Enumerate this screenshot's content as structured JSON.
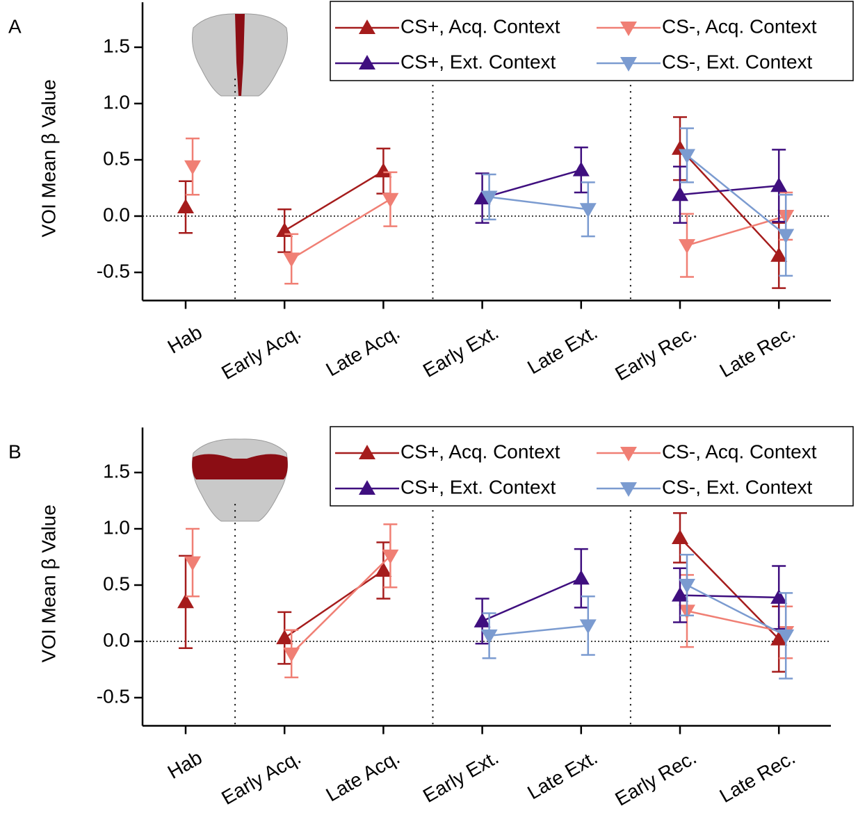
{
  "chart_data": [
    {
      "type": "line",
      "panel": "A",
      "y_label": "VOI Mean β Value",
      "categories": [
        "Hab",
        "Early Acq.",
        "Late Acq.",
        "Early Ext.",
        "Late Ext.",
        "Early Rec.",
        "Late Rec."
      ],
      "ylim": [
        -0.75,
        1.9
      ],
      "yticks": [
        -0.5,
        {
          "value": 0,
          "label": "0.0"
        },
        0.5,
        {
          "value": 1,
          "label": "1.0"
        },
        1.5
      ],
      "series": [
        {
          "name": "CS+, Acq. Context",
          "color": "#a51c1c",
          "marker": "triangle-up",
          "values": [
            0.08,
            -0.13,
            0.4,
            null,
            null,
            0.6,
            -0.35
          ],
          "errors": [
            0.23,
            0.19,
            0.2,
            null,
            null,
            0.28,
            0.29
          ]
        },
        {
          "name": "CS-, Acq. Context",
          "color": "#f07f74",
          "marker": "triangle-down",
          "values": [
            0.44,
            -0.38,
            0.15,
            null,
            null,
            -0.26,
            0.0
          ],
          "errors": [
            0.25,
            0.22,
            0.24,
            null,
            null,
            0.28,
            0.21
          ]
        },
        {
          "name": "CS+, Ext. Context",
          "color": "#3f0f7f",
          "marker": "triangle-up",
          "values": [
            null,
            null,
            null,
            0.16,
            0.41,
            0.19,
            0.27
          ],
          "errors": [
            null,
            null,
            null,
            0.22,
            0.2,
            0.25,
            0.32
          ]
        },
        {
          "name": "CS-, Ext. Context",
          "color": "#7b9bd0",
          "marker": "triangle-down",
          "values": [
            null,
            null,
            null,
            0.17,
            0.06,
            0.54,
            -0.17
          ],
          "errors": [
            null,
            null,
            null,
            0.2,
            0.24,
            0.24,
            0.36
          ]
        }
      ]
    },
    {
      "type": "line",
      "panel": "B",
      "y_label": "VOI Mean β Value",
      "categories": [
        "Hab",
        "Early Acq.",
        "Late Acq.",
        "Early Ext.",
        "Late Ext.",
        "Early Rec.",
        "Late Rec."
      ],
      "ylim": [
        -0.75,
        1.9
      ],
      "yticks": [
        -0.5,
        {
          "value": 0,
          "label": "0.0"
        },
        0.5,
        {
          "value": 1,
          "label": "1.0"
        },
        1.5
      ],
      "series": [
        {
          "name": "CS+, Acq. Context",
          "color": "#a51c1c",
          "marker": "triangle-up",
          "values": [
            0.35,
            0.03,
            0.63,
            null,
            null,
            0.92,
            0.02
          ],
          "errors": [
            0.41,
            0.23,
            0.25,
            null,
            null,
            0.22,
            0.29
          ]
        },
        {
          "name": "CS-, Acq. Context",
          "color": "#f07f74",
          "marker": "triangle-down",
          "values": [
            0.7,
            -0.11,
            0.76,
            null,
            null,
            0.27,
            0.08
          ],
          "errors": [
            0.3,
            0.21,
            0.28,
            null,
            null,
            0.32,
            0.23
          ]
        },
        {
          "name": "CS+, Ext. Context",
          "color": "#3f0f7f",
          "marker": "triangle-up",
          "values": [
            null,
            null,
            null,
            0.18,
            0.56,
            0.41,
            0.39
          ],
          "errors": [
            null,
            null,
            null,
            0.2,
            0.26,
            0.24,
            0.28
          ]
        },
        {
          "name": "CS-, Ext. Context",
          "color": "#7b9bd0",
          "marker": "triangle-down",
          "values": [
            null,
            null,
            null,
            0.05,
            0.14,
            0.5,
            0.05
          ],
          "errors": [
            null,
            null,
            null,
            0.2,
            0.26,
            0.27,
            0.38
          ]
        }
      ]
    }
  ]
}
